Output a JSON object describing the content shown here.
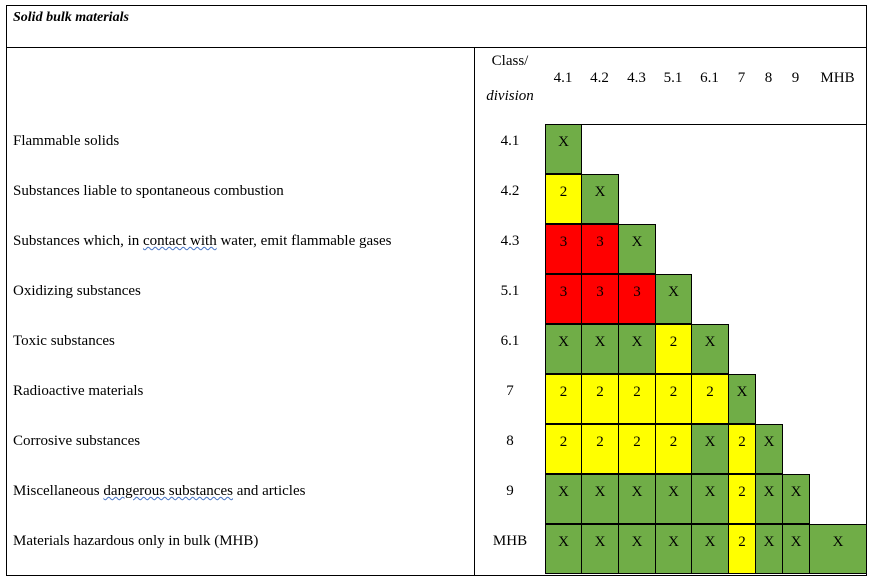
{
  "title": "Solid bulk materials",
  "header": {
    "class_label": "Class/",
    "division_label": "division",
    "columns": [
      "4.1",
      "4.2",
      "4.3",
      "5.1",
      "6.1",
      "7",
      "8",
      "9",
      "MHB"
    ]
  },
  "colors": {
    "X": "#70ad47",
    "2": "#ffff00",
    "3": "#ff0000"
  },
  "rows": [
    {
      "label": "Flammable solids",
      "class": "4.1",
      "cells": [
        "X"
      ]
    },
    {
      "label": "Substances liable to spontaneous combustion",
      "class": "4.2",
      "cells": [
        "2",
        "X"
      ]
    },
    {
      "label_parts": [
        "Substances which, in ",
        "contact  with",
        " water, emit flammable  gases"
      ],
      "class": "4.3",
      "cells": [
        "3",
        "3",
        "X"
      ]
    },
    {
      "label": "Oxidizing substances",
      "class": "5.1",
      "cells": [
        "3",
        "3",
        "3",
        "X"
      ]
    },
    {
      "label": "Toxic substances",
      "class": "6.1",
      "cells": [
        "X",
        "X",
        "X",
        "2",
        "X"
      ]
    },
    {
      "label": "Radioactive materials",
      "class": "7",
      "cells": [
        "2",
        "2",
        "2",
        "2",
        "2",
        "X"
      ]
    },
    {
      "label": "Corrosive substances",
      "class": "8",
      "cells": [
        "2",
        "2",
        "2",
        "2",
        "X",
        "2",
        "X"
      ]
    },
    {
      "label_parts": [
        "Miscellaneous ",
        "dangerous  substances",
        " and articles"
      ],
      "class": "9",
      "cells": [
        "X",
        "X",
        "X",
        "X",
        "X",
        "2",
        "X",
        "X"
      ]
    },
    {
      "label": "Materials hazardous only in bulk (MHB)",
      "class": "MHB",
      "cells": [
        "X",
        "X",
        "X",
        "X",
        "X",
        "2",
        "X",
        "X",
        "X"
      ]
    }
  ]
}
